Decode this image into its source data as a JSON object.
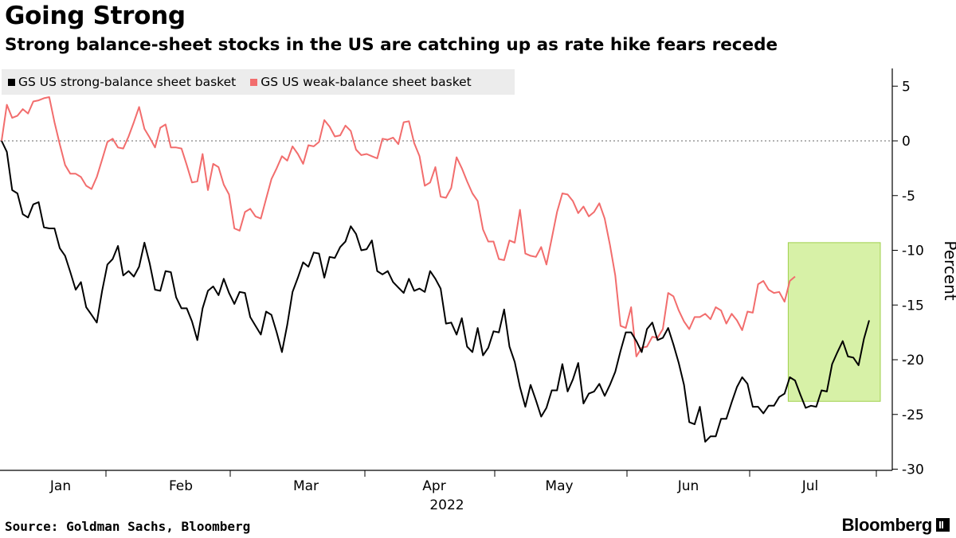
{
  "chart_data": {
    "type": "line",
    "title": "Going Strong",
    "subtitle": "Strong balance-sheet stocks in the US are catching up as rate hike fears recede",
    "ylabel": "Percent",
    "xlabel": "2022",
    "ylim": [
      -30,
      7
    ],
    "yticks": [
      5,
      0,
      -5,
      -10,
      -15,
      -20,
      -25,
      -30
    ],
    "months": [
      "Jan",
      "Feb",
      "Mar",
      "Apr",
      "May",
      "Jun",
      "Jul"
    ],
    "grid": false,
    "legend_position": "top-left",
    "series": [
      {
        "name": "GS US strong-balance sheet basket",
        "color": "#000000",
        "values": [
          0,
          -1,
          -4.5,
          -4.8,
          -6.7,
          -7,
          -5.8,
          -5.6,
          -7.9,
          -8,
          -8,
          -9.8,
          -10.5,
          -12,
          -13.6,
          -12.9,
          -15.2,
          -15.9,
          -16.6,
          -13.7,
          -11.3,
          -10.8,
          -9.6,
          -12.3,
          -11.9,
          -12.4,
          -11.5,
          -9.3,
          -11.2,
          -13.6,
          -13.7,
          -11.9,
          -12,
          -14.3,
          -15.3,
          -15.3,
          -16.5,
          -18.2,
          -15.3,
          -13.7,
          -13.3,
          -14.1,
          -12.6,
          -13.9,
          -14.9,
          -13.8,
          -13.9,
          -16.1,
          -16.9,
          -17.7,
          -15.6,
          -15.9,
          -17.5,
          -19.3,
          -16.8,
          -13.8,
          -12.5,
          -11.1,
          -11.5,
          -10.2,
          -10.3,
          -12.5,
          -10.6,
          -10.7,
          -9.7,
          -9.2,
          -7.8,
          -8.5,
          -10,
          -9.9,
          -9.1,
          -11.9,
          -12.2,
          -11.9,
          -12.9,
          -13.4,
          -13.9,
          -12.6,
          -13.7,
          -13.5,
          -13.8,
          -11.9,
          -12.6,
          -13.5,
          -16.7,
          -16.6,
          -17.7,
          -16.2,
          -18.8,
          -19.3,
          -17.1,
          -19.6,
          -18.9,
          -17.4,
          -17.5,
          -15.4,
          -18.8,
          -20.2,
          -22.5,
          -24.3,
          -22.3,
          -23.7,
          -25.2,
          -24.4,
          -22.8,
          -22.8,
          -20.4,
          -22.9,
          -21.8,
          -20.3,
          -24,
          -23.1,
          -22.9,
          -22.2,
          -23.3,
          -22.3,
          -21.1,
          -19.2,
          -17.5,
          -17.5,
          -18.3,
          -19.3,
          -17.2,
          -16.6,
          -18.2,
          -18,
          -17.1,
          -18.6,
          -20.3,
          -22.3,
          -25.7,
          -25.9,
          -24.3,
          -27.5,
          -27,
          -27,
          -25.4,
          -25.4,
          -23.9,
          -22.5,
          -21.6,
          -22.2,
          -24.3,
          -24.3,
          -24.9,
          -24.2,
          -24.2,
          -23.4,
          -23.1,
          -21.6,
          -21.9,
          -23.2,
          -24.4,
          -24.2,
          -24.3,
          -22.8,
          -22.9,
          -20.4,
          -19.3,
          -18.3,
          -19.7,
          -19.8,
          -20.5,
          -18.1,
          -16.4
        ]
      },
      {
        "name": "GS US weak-balance sheet basket",
        "color": "#f26d6d",
        "values": [
          0,
          3.3,
          2.1,
          2.3,
          2.9,
          2.5,
          3.6,
          3.7,
          3.9,
          4,
          1.7,
          -0.3,
          -2.2,
          -3,
          -3,
          -3.3,
          -4.1,
          -4.4,
          -3.3,
          -1.7,
          -0.1,
          0.2,
          -0.6,
          -0.7,
          0.4,
          1.7,
          3.1,
          1.1,
          0.3,
          -0.6,
          1.2,
          1.5,
          -0.6,
          -0.6,
          -0.7,
          -2.2,
          -3.8,
          -3.7,
          -1.2,
          -4.5,
          -2.1,
          -2.4,
          -4,
          -4.9,
          -8,
          -8.2,
          -6.5,
          -6.2,
          -6.9,
          -7.1,
          -5.3,
          -3.5,
          -2.5,
          -1.4,
          -1.8,
          -0.5,
          -1.2,
          -2.1,
          -0.4,
          -0.5,
          -0.1,
          1.9,
          1.3,
          0.4,
          0.5,
          1.4,
          0.9,
          -0.8,
          -1.3,
          -1.2,
          -1.4,
          -1.6,
          0.2,
          0.1,
          0.3,
          -0.3,
          1.7,
          1.8,
          -0.2,
          -1.4,
          -4.1,
          -3.8,
          -2.4,
          -5.1,
          -5.2,
          -4.3,
          -1.5,
          -2.5,
          -3.7,
          -4.8,
          -5.5,
          -8.1,
          -9.2,
          -9.2,
          -10.8,
          -10.9,
          -9.1,
          -9.3,
          -6.3,
          -10.3,
          -10.5,
          -10.6,
          -9.7,
          -11.3,
          -8.9,
          -6.5,
          -4.8,
          -4.9,
          -5.5,
          -6.6,
          -6,
          -6.9,
          -6.5,
          -5.7,
          -7.1,
          -9.5,
          -12.3,
          -16.9,
          -17.1,
          -15.2,
          -19.7,
          -18.9,
          -18.8,
          -17.9,
          -18,
          -17.2,
          -13.9,
          -14.2,
          -15.5,
          -16.5,
          -17.2,
          -16.1,
          -16.1,
          -15.8,
          -16.3,
          -15.2,
          -15.5,
          -16.7,
          -15.8,
          -16.4,
          -17.3,
          -15.6,
          -15.7,
          -13.1,
          -12.8,
          -13.6,
          -13.9,
          -13.8,
          -14.7,
          -12.8,
          -12.4
        ]
      }
    ],
    "highlight": {
      "y_top": -9.3,
      "y_bottom": -23.8,
      "color": "#c9ec8a"
    }
  },
  "source": "Source: Goldman Sachs, Bloomberg",
  "brand": "Bloomberg"
}
